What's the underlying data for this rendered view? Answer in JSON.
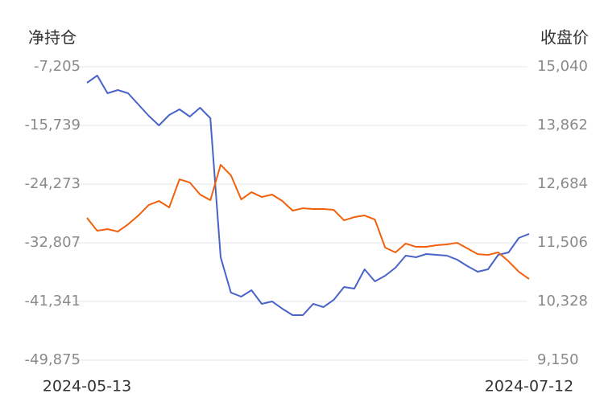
{
  "chart_data": {
    "type": "line",
    "ylabel": "净持仓",
    "y2label": "收盘价",
    "x": [
      "2024-05-13",
      null,
      null,
      null,
      null,
      null,
      null,
      null,
      null,
      null,
      null,
      null,
      null,
      null,
      null,
      null,
      null,
      null,
      null,
      null,
      null,
      null,
      null,
      null,
      null,
      null,
      null,
      null,
      null,
      null,
      null,
      null,
      null,
      null,
      null,
      null,
      null,
      null,
      null,
      null,
      null,
      null,
      null,
      "2024-07-12"
    ],
    "ylim": [
      -49875,
      -7205
    ],
    "yticks": [
      {
        "value": -7205,
        "label": "-7,205"
      },
      {
        "value": -15739,
        "label": "-15,739"
      },
      {
        "value": -24273,
        "label": "-24,273"
      },
      {
        "value": -32807,
        "label": "-32,807"
      },
      {
        "value": -41341,
        "label": "-41,341"
      },
      {
        "value": -49875,
        "label": "-49,875"
      }
    ],
    "y2lim": [
      9150,
      15040
    ],
    "y2ticks": [
      {
        "value": 15040,
        "label": "15,040"
      },
      {
        "value": 13862,
        "label": "13,862"
      },
      {
        "value": 12684,
        "label": "12,684"
      },
      {
        "value": 11506,
        "label": "11,506"
      },
      {
        "value": 10328,
        "label": "10,328"
      },
      {
        "value": 9150,
        "label": "9,150"
      }
    ],
    "grid": true,
    "series": [
      {
        "color": "#4a63c8",
        "values": [
          -9543,
          -8491,
          -11063,
          -10595,
          -11063,
          -12699,
          -14336,
          -15739,
          -14219,
          -13401,
          -14453,
          -13167,
          -14687,
          -34910,
          -40054,
          -40639,
          -39703,
          -41691,
          -41340,
          -42392,
          -43327,
          -43327,
          -41691,
          -42158,
          -41106,
          -39235,
          -39469,
          -36664,
          -38417,
          -37599,
          -36430,
          -34677,
          -34910,
          -34443,
          -34560,
          -34677,
          -35261,
          -36196,
          -37015,
          -36664,
          -34560,
          -34209,
          -32105,
          -31520
        ]
      },
      {
        "color": "#f2600c",
        "axis": "y2",
        "values": [
          12006,
          11747,
          11780,
          11731,
          11877,
          12054,
          12264,
          12345,
          12216,
          12780,
          12716,
          12474,
          12361,
          13071,
          12861,
          12377,
          12522,
          12425,
          12474,
          12345,
          12151,
          12199,
          12183,
          12183,
          12167,
          11957,
          12022,
          12054,
          11973,
          11409,
          11312,
          11489,
          11425,
          11425,
          11457,
          11473,
          11505,
          11392,
          11279,
          11263,
          11312,
          11134,
          10924,
          10779
        ]
      }
    ]
  }
}
